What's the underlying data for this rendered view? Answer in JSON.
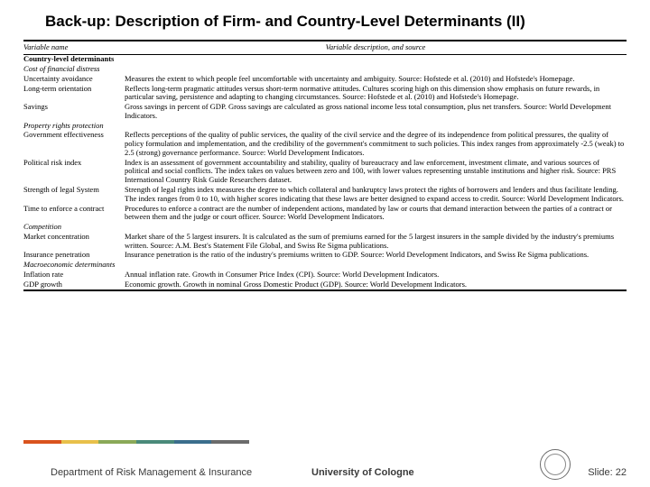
{
  "title": "Back-up: Description of Firm- and Country-Level Determinants (II)",
  "headers": {
    "col1": "Variable name",
    "col2": "Variable description, and source"
  },
  "sections": [
    {
      "heading": "Country-level determinants",
      "subsections": [
        {
          "heading": "Cost of financial distress",
          "rows": [
            {
              "name": "Uncertainty avoidance",
              "desc": "Measures the extent to which people feel uncomfortable with uncertainty and ambiguity. Source: Hofstede et al. (2010) and Hofstede's Homepage."
            },
            {
              "name": "Long-term orientation",
              "desc": "Reflects long-term pragmatic attitudes versus short-term normative attitudes. Cultures scoring high on this dimension show emphasis on future rewards, in particular saving, persistence and adapting to changing circumstances. Source: Hofstede et al. (2010) and Hofstede's Homepage."
            },
            {
              "name": "Savings",
              "desc": "Gross savings in percent of GDP. Gross savings are calculated as gross national income less total consumption, plus net transfers. Source: World Development Indicators."
            }
          ]
        },
        {
          "heading": "Property rights protection",
          "rows": [
            {
              "name": "Government effectiveness",
              "desc": "Reflects perceptions of the quality of public services, the quality of the civil service and the degree of its independence from political pressures, the quality of policy formulation and implementation, and the credibility of the government's commitment to such policies. This index ranges from approximately -2.5 (weak) to 2.5 (strong) governance performance. Source: World Development Indicators."
            },
            {
              "name": "Political risk index",
              "desc": "Index is an assessment of government accountability and stability, quality of bureaucracy and law enforcement, investment climate, and various sources of political and social conflicts. The index takes on values between zero and 100, with lower values representing unstable institutions and higher risk. Source: PRS International Country Risk Guide Researchers dataset."
            },
            {
              "name": "Strength of legal System",
              "desc": "Strength of legal rights index measures the degree to which collateral and bankruptcy laws protect the rights of borrowers and lenders and thus facilitate lending. The index ranges from 0 to 10, with higher scores indicating that these laws are better designed to expand access to credit. Source: World Development Indicators."
            },
            {
              "name": "Time to enforce a contract",
              "desc": "Procedures to enforce a contract are the number of independent actions, mandated by law or courts that demand interaction between the parties of a contract or between them and the judge or court officer. Source: World Development Indicators."
            }
          ]
        },
        {
          "heading": "Competition",
          "rows": [
            {
              "name": "Market concentration",
              "desc": "Market share of the 5 largest insurers. It is calculated as the sum of premiums earned for the 5 largest insurers in the sample divided by the industry's premiums written. Source: A.M. Best's Statement File Global, and Swiss Re Sigma publications."
            },
            {
              "name": "Insurance penetration",
              "desc": "Insurance penetration is the ratio of the industry's premiums written to GDP. Source: World Development Indicators, and Swiss Re Sigma publications."
            }
          ]
        },
        {
          "heading": "Macroeconomic determinants",
          "rows": [
            {
              "name": "Inflation rate",
              "desc": "Annual inflation rate. Growth in Consumer Price Index (CPI). Source: World Development Indicators."
            },
            {
              "name": "GDP growth",
              "desc": "Economic growth. Growth in nominal Gross Domestic Product (GDP). Source: World Development Indicators."
            }
          ]
        }
      ]
    }
  ],
  "stripe_colors": [
    "#d9531e",
    "#e8c04a",
    "#8aa958",
    "#4a8a7a",
    "#3b6e8c",
    "#6b6b6b"
  ],
  "footer": {
    "dept": "Department of Risk Management & Insurance",
    "univ": "University of Cologne",
    "slide": "Slide: 22"
  }
}
